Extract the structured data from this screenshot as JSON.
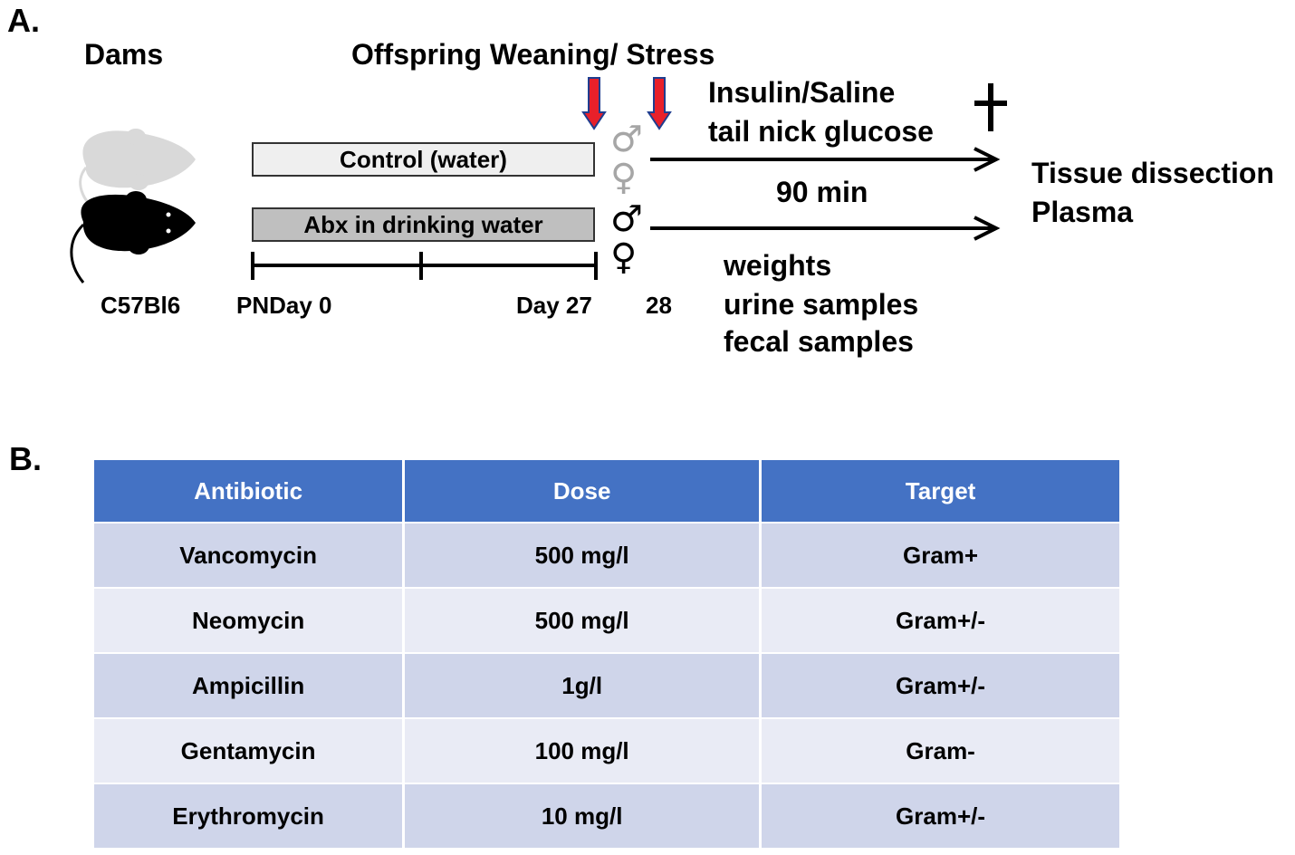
{
  "panel_a": {
    "label": "A.",
    "dams_title": "Dams",
    "weaning_title": "Offspring Weaning/ Stress",
    "insulin_line1": "Insulin/Saline",
    "insulin_line2": "tail nick glucose",
    "ninety_min": "90 min",
    "outcome_line1": "Tissue dissection",
    "outcome_line2": "Plasma",
    "measure_line1": "weights",
    "measure_line2": "urine samples",
    "measure_line3": "fecal samples",
    "strain": "C57Bl6",
    "day0": "PNDay 0",
    "day27": "Day 27",
    "day28": "28",
    "control_bar": "Control (water)",
    "abx_bar": "Abx in drinking water",
    "male_symbol": "♂",
    "female_symbol": "♀",
    "dagger_symbol": "+",
    "colors": {
      "arrow_red": "#e8202a",
      "arrow_blue": "#1f3d8f",
      "control_mouse": "#d9d9d9",
      "control_sex_symbols": "#a6a6a6",
      "control_bar_fill": "#efefef",
      "abx_mouse": "#000000",
      "abx_bar_fill": "#bfbfbf"
    }
  },
  "panel_b": {
    "label": "B.",
    "headers": [
      "Antibiotic",
      "Dose",
      "Target"
    ],
    "rows": [
      [
        "Vancomycin",
        "500 mg/l",
        "Gram+"
      ],
      [
        "Neomycin",
        "500 mg/l",
        "Gram+/-"
      ],
      [
        "Ampicillin",
        "1g/l",
        "Gram+/-"
      ],
      [
        "Gentamycin",
        "100 mg/l",
        "Gram-"
      ],
      [
        "Erythromycin",
        "10 mg/l",
        "Gram+/-"
      ]
    ],
    "colors": {
      "header": "#4472c4",
      "row_odd": "#cfd5ea",
      "row_even": "#e9ebf5"
    }
  }
}
